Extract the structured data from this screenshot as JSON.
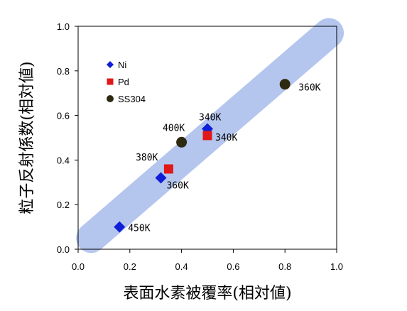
{
  "chart_data": {
    "type": "scatter",
    "xlabel": "表面水素被覆率(相対値)",
    "ylabel": "粒子反射係数(相対値)",
    "xlim": [
      0.0,
      1.0
    ],
    "ylim": [
      0.0,
      1.0
    ],
    "x_ticks": [
      "0.0",
      "0.2",
      "0.4",
      "0.6",
      "0.8",
      "1.0"
    ],
    "y_ticks": [
      "0.0",
      "0.2",
      "0.4",
      "0.6",
      "0.8",
      "1.0"
    ],
    "grid": false,
    "legend_position": "top-left",
    "band": {
      "from": [
        0.05,
        0.05
      ],
      "to": [
        0.97,
        0.97
      ],
      "color": "#b4c6ee"
    },
    "series": [
      {
        "name": "Ni",
        "marker": "diamond",
        "color": "#0f1fd8",
        "points": [
          {
            "x": 0.16,
            "y": 0.1,
            "label": "450K"
          },
          {
            "x": 0.32,
            "y": 0.32,
            "label": "360K"
          },
          {
            "x": 0.5,
            "y": 0.54,
            "label": "340K"
          }
        ]
      },
      {
        "name": "Pd",
        "marker": "square",
        "color": "#e01818",
        "points": [
          {
            "x": 0.35,
            "y": 0.36,
            "label": "380K"
          },
          {
            "x": 0.5,
            "y": 0.51,
            "label": "340K"
          }
        ]
      },
      {
        "name": "SS304",
        "marker": "circle",
        "color": "#2e2a10",
        "points": [
          {
            "x": 0.4,
            "y": 0.48,
            "label": "400K"
          },
          {
            "x": 0.8,
            "y": 0.74,
            "label": "360K"
          }
        ]
      }
    ]
  }
}
